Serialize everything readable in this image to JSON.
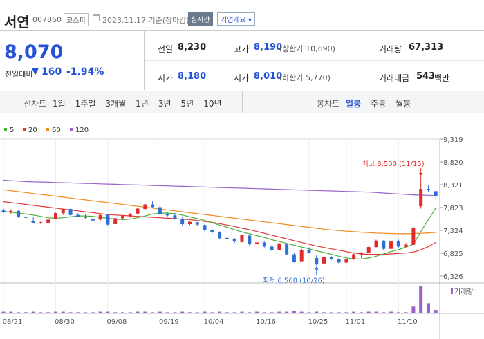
{
  "header": {
    "name": "서연",
    "code": "007860",
    "market": "코스피",
    "date": "2023.11.17 기준(장마감)",
    "realtime_btn": "실시간",
    "company_btn": "기업개요",
    "company_arrow": "▾"
  },
  "price": {
    "current": "8,070",
    "change_label": "전일대비",
    "change_arrow": "▼",
    "change": "160",
    "change_pct": "-1.94%"
  },
  "stats": {
    "prev_label": "전일",
    "prev": "8,230",
    "high_label": "고가",
    "high": "8,190",
    "upper_limit": "(상한가 10,690)",
    "volume_label": "거래량",
    "volume": "67,313",
    "open_label": "시가",
    "open": "8,180",
    "low_label": "저가",
    "low": "8,010",
    "lower_limit": "(하한가 5,770)",
    "amount_label": "거래대금",
    "amount": "543",
    "amount_unit": "백만"
  },
  "period_tabs": {
    "label": "선차트",
    "items": [
      "1일",
      "1주일",
      "3개월",
      "1년",
      "3년",
      "5년",
      "10년"
    ]
  },
  "candle_tabs": {
    "label": "봉차트",
    "items": [
      "일봉",
      "주봉",
      "월봉"
    ],
    "active": "일봉"
  },
  "colors": {
    "up": "#e02b2b",
    "down": "#2e6fd6",
    "accent": "#2553d6",
    "ma5": "#4cae3c",
    "ma20": "#e03838",
    "ma60": "#f08a1c",
    "ma120": "#9a63c9"
  },
  "chart_data": {
    "type": "candlestick",
    "legend": [
      {
        "name": "5",
        "color": "#4cae3c"
      },
      {
        "name": "20",
        "color": "#e03838"
      },
      {
        "name": "60",
        "color": "#f08a1c"
      },
      {
        "name": "120",
        "color": "#9a63c9"
      }
    ],
    "y_ticks": [
      "9,319",
      "8,820",
      "8,321",
      "7,823",
      "7,324",
      "6,825",
      "6,326"
    ],
    "ylim": [
      6326,
      9319
    ],
    "x_ticks": [
      {
        "label": "08/21",
        "idx": 0
      },
      {
        "label": "08/30",
        "idx": 7
      },
      {
        "label": "09/08",
        "idx": 14
      },
      {
        "label": "09/19",
        "idx": 21
      },
      {
        "label": "10/04",
        "idx": 27
      },
      {
        "label": "10/16",
        "idx": 34
      },
      {
        "label": "10/25",
        "idx": 41
      },
      {
        "label": "11/01",
        "idx": 46
      },
      {
        "label": "11/10",
        "idx": 53
      }
    ],
    "volume_label": "거래량",
    "annotation_high": "최고 8,500 (11/15)",
    "annotation_low": "최저 6,560 (10/26)",
    "candles": [
      [
        7760,
        7810,
        7700,
        7720
      ],
      [
        7720,
        7780,
        7690,
        7750
      ],
      [
        7750,
        7760,
        7600,
        7620
      ],
      [
        7620,
        7660,
        7570,
        7600
      ],
      [
        7520,
        7620,
        7490,
        7490
      ],
      [
        7480,
        7530,
        7460,
        7500
      ],
      [
        7480,
        7580,
        7470,
        7560
      ],
      [
        7580,
        7710,
        7570,
        7700
      ],
      [
        7700,
        7800,
        7660,
        7790
      ],
      [
        7790,
        7800,
        7650,
        7660
      ],
      [
        7660,
        7700,
        7610,
        7620
      ],
      [
        7620,
        7680,
        7580,
        7600
      ],
      [
        7580,
        7600,
        7530,
        7540
      ],
      [
        7560,
        7680,
        7540,
        7660
      ],
      [
        7660,
        7680,
        7430,
        7450
      ],
      [
        7460,
        7600,
        7450,
        7590
      ],
      [
        7590,
        7660,
        7570,
        7640
      ],
      [
        7640,
        7700,
        7600,
        7680
      ],
      [
        7690,
        7820,
        7670,
        7800
      ],
      [
        7790,
        7900,
        7760,
        7890
      ],
      [
        7890,
        7960,
        7820,
        7830
      ],
      [
        7830,
        7870,
        7650,
        7680
      ],
      [
        7680,
        7720,
        7620,
        7650
      ],
      [
        7650,
        7700,
        7560,
        7580
      ],
      [
        7580,
        7620,
        7420,
        7460
      ],
      [
        7460,
        7520,
        7440,
        7510
      ],
      [
        7500,
        7510,
        7420,
        7450
      ],
      [
        7440,
        7460,
        7300,
        7330
      ],
      [
        7330,
        7360,
        7250,
        7280
      ],
      [
        7280,
        7300,
        7130,
        7150
      ],
      [
        7160,
        7200,
        7100,
        7130
      ],
      [
        7130,
        7160,
        7050,
        7080
      ],
      [
        7070,
        7230,
        7060,
        7220
      ],
      [
        7210,
        7230,
        7000,
        7020
      ],
      [
        7020,
        7100,
        6900,
        7060
      ],
      [
        7060,
        7080,
        6950,
        6970
      ],
      [
        6970,
        7000,
        6880,
        6900
      ],
      [
        6900,
        7050,
        6890,
        7040
      ],
      [
        7020,
        7040,
        6780,
        6800
      ],
      [
        6800,
        6830,
        6620,
        6640
      ],
      [
        6650,
        6920,
        6640,
        6900
      ],
      [
        6900,
        6950,
        6820,
        6840
      ],
      [
        6720,
        6780,
        6560,
        6580
      ],
      [
        6600,
        6760,
        6590,
        6740
      ],
      [
        6740,
        6760,
        6680,
        6700
      ],
      [
        6690,
        6720,
        6600,
        6620
      ],
      [
        6620,
        6700,
        6610,
        6690
      ],
      [
        6690,
        6820,
        6680,
        6800
      ],
      [
        6800,
        6850,
        6720,
        6830
      ],
      [
        6830,
        6980,
        6820,
        6960
      ],
      [
        6960,
        7120,
        6950,
        7100
      ],
      [
        7100,
        7110,
        6900,
        6920
      ],
      [
        6920,
        7100,
        6900,
        7080
      ],
      [
        7080,
        7120,
        6950,
        6970
      ],
      [
        6970,
        7050,
        6950,
        7010
      ],
      [
        7010,
        7400,
        7000,
        7380
      ],
      [
        7850,
        8500,
        7800,
        8230
      ],
      [
        8230,
        8300,
        8160,
        8200
      ],
      [
        8180,
        8190,
        8010,
        8070
      ]
    ],
    "ma5": [
      7740,
      7720,
      7700,
      7680,
      7660,
      7630,
      7600,
      7590,
      7600,
      7620,
      7640,
      7640,
      7630,
      7610,
      7590,
      7570,
      7560,
      7570,
      7600,
      7640,
      7680,
      7700,
      7700,
      7690,
      7660,
      7620,
      7580,
      7540,
      7490,
      7440,
      7390,
      7340,
      7290,
      7250,
      7210,
      7170,
      7120,
      7080,
      7040,
      7000,
      6960,
      6920,
      6880,
      6840,
      6800,
      6760,
      6720,
      6700,
      6700,
      6720,
      6760,
      6810,
      6860,
      6900,
      6960,
      7020,
      7300,
      7560,
      7810
    ],
    "ma20": [
      7950,
      7930,
      7910,
      7890,
      7870,
      7850,
      7830,
      7810,
      7790,
      7770,
      7750,
      7730,
      7710,
      7690,
      7670,
      7660,
      7650,
      7640,
      7630,
      7620,
      7610,
      7600,
      7590,
      7580,
      7570,
      7560,
      7540,
      7520,
      7500,
      7470,
      7440,
      7410,
      7370,
      7340,
      7300,
      7260,
      7220,
      7180,
      7140,
      7100,
      7060,
      7020,
      6980,
      6950,
      6920,
      6890,
      6860,
      6830,
      6810,
      6800,
      6800,
      6800,
      6810,
      6820,
      6830,
      6850,
      6900,
      6970,
      7060
    ],
    "ma60": [
      8210,
      8190,
      8170,
      8150,
      8130,
      8110,
      8090,
      8070,
      8050,
      8030,
      8010,
      7990,
      7970,
      7950,
      7930,
      7910,
      7890,
      7870,
      7850,
      7830,
      7810,
      7790,
      7770,
      7750,
      7730,
      7710,
      7690,
      7670,
      7650,
      7630,
      7610,
      7590,
      7570,
      7550,
      7530,
      7510,
      7490,
      7470,
      7450,
      7430,
      7410,
      7390,
      7370,
      7350,
      7335,
      7320,
      7305,
      7295,
      7285,
      7275,
      7265,
      7260,
      7255,
      7250,
      7250,
      7255,
      7260,
      7270,
      7280
    ],
    "ma120": [
      8420,
      8410,
      8400,
      8390,
      8385,
      8380,
      8375,
      8370,
      8365,
      8360,
      8355,
      8350,
      8345,
      8340,
      8335,
      8330,
      8325,
      8320,
      8315,
      8310,
      8305,
      8300,
      8295,
      8290,
      8285,
      8280,
      8275,
      8270,
      8265,
      8260,
      8255,
      8250,
      8245,
      8240,
      8235,
      8230,
      8225,
      8220,
      8215,
      8210,
      8205,
      8200,
      8195,
      8190,
      8185,
      8180,
      8175,
      8170,
      8165,
      8160,
      8150,
      8140,
      8130,
      8120,
      8110,
      8100,
      8095,
      8090,
      8085
    ],
    "volumes": [
      3,
      3,
      2,
      2,
      3,
      2,
      2,
      3,
      3,
      2,
      2,
      2,
      2,
      3,
      3,
      2,
      2,
      2,
      3,
      3,
      2,
      3,
      2,
      2,
      3,
      2,
      2,
      3,
      2,
      3,
      2,
      2,
      3,
      2,
      3,
      2,
      2,
      3,
      3,
      4,
      3,
      2,
      3,
      2,
      2,
      2,
      2,
      3,
      2,
      3,
      3,
      2,
      3,
      2,
      2,
      12,
      48,
      18,
      6
    ]
  }
}
